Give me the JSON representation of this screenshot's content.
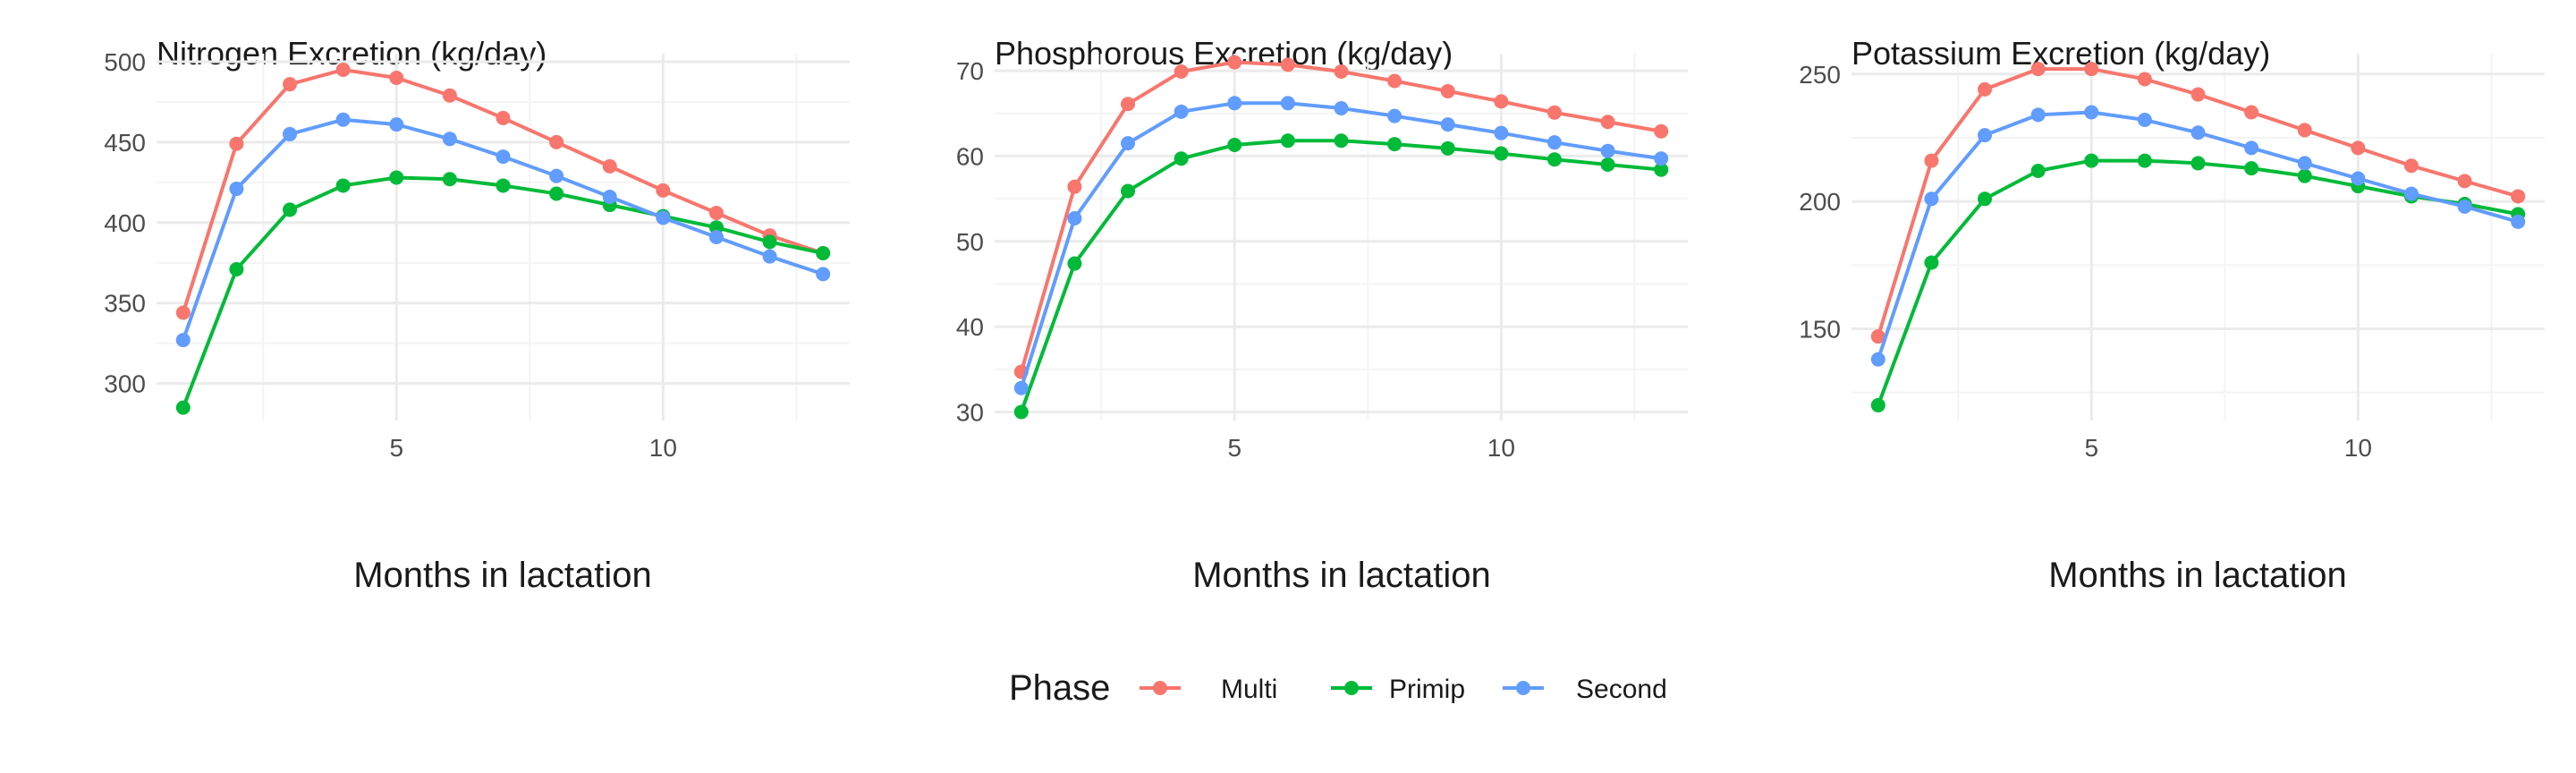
{
  "chart_data": [
    {
      "type": "line",
      "title": "Nitrogen Excretion (kg/day)",
      "xlabel": "Months in lactation",
      "ylabel": "",
      "x": [
        1,
        2,
        3,
        4,
        5,
        6,
        7,
        8,
        9,
        10,
        11,
        12,
        13
      ],
      "xlim": [
        0.5,
        13.5
      ],
      "ylim": [
        277,
        505
      ],
      "xticks": [
        5,
        10
      ],
      "yticks": [
        300,
        350,
        400,
        450,
        500
      ],
      "grid": true,
      "series": [
        {
          "name": "Multi",
          "values": [
            344,
            449,
            486,
            495,
            490,
            479,
            465,
            450,
            435,
            420,
            406,
            392,
            381
          ]
        },
        {
          "name": "Primip",
          "values": [
            285,
            371,
            408,
            423,
            428,
            427,
            423,
            418,
            411,
            404,
            397,
            388,
            381
          ]
        },
        {
          "name": "Second",
          "values": [
            327,
            421,
            455,
            464,
            461,
            452,
            441,
            429,
            416,
            403,
            391,
            379,
            368
          ]
        }
      ]
    },
    {
      "type": "line",
      "title": "Phosphorous Excretion (kg/day)",
      "xlabel": "Months in lactation",
      "ylabel": "",
      "x": [
        1,
        2,
        3,
        4,
        5,
        6,
        7,
        8,
        9,
        10,
        11,
        12,
        13
      ],
      "xlim": [
        0.5,
        13.5
      ],
      "ylim": [
        29,
        72
      ],
      "xticks": [
        5,
        10
      ],
      "yticks": [
        30,
        40,
        50,
        60,
        70
      ],
      "grid": true,
      "series": [
        {
          "name": "Multi",
          "values": [
            34.7,
            56.4,
            66.1,
            69.9,
            71.0,
            70.7,
            69.9,
            68.8,
            67.6,
            66.4,
            65.1,
            64.0,
            62.9
          ]
        },
        {
          "name": "Primip",
          "values": [
            30.0,
            47.4,
            55.9,
            59.7,
            61.3,
            61.8,
            61.8,
            61.4,
            60.9,
            60.3,
            59.6,
            59.0,
            58.4
          ]
        },
        {
          "name": "Second",
          "values": [
            32.8,
            52.7,
            61.5,
            65.2,
            66.2,
            66.2,
            65.6,
            64.7,
            63.7,
            62.7,
            61.6,
            60.6,
            59.7
          ]
        }
      ]
    },
    {
      "type": "line",
      "title": "Potassium Excretion (kg/day)",
      "xlabel": "Months in lactation",
      "ylabel": "",
      "x": [
        1,
        2,
        3,
        4,
        5,
        6,
        7,
        8,
        9,
        10,
        11,
        12,
        13
      ],
      "xlim": [
        0.5,
        13.5
      ],
      "ylim": [
        114,
        258
      ],
      "xticks": [
        5,
        10
      ],
      "yticks": [
        150,
        200,
        250
      ],
      "grid": true,
      "series": [
        {
          "name": "Multi",
          "values": [
            147,
            216,
            244,
            252,
            252,
            248,
            242,
            235,
            228,
            221,
            214,
            208,
            202
          ]
        },
        {
          "name": "Primip",
          "values": [
            120,
            176,
            201,
            212,
            216,
            216,
            215,
            213,
            210,
            206,
            202,
            199,
            195
          ]
        },
        {
          "name": "Second",
          "values": [
            138,
            201,
            226,
            234,
            235,
            232,
            227,
            221,
            215,
            209,
            203,
            198,
            192
          ]
        }
      ]
    }
  ],
  "legend": {
    "title": "Phase",
    "position": "bottom",
    "items": [
      "Multi",
      "Primip",
      "Second"
    ]
  },
  "colors": {
    "Multi": "#F8766D",
    "Primip": "#00BA38",
    "Second": "#619CFF",
    "grid_major": "#EBEBEB",
    "grid_minor": "#F4F4F4"
  }
}
